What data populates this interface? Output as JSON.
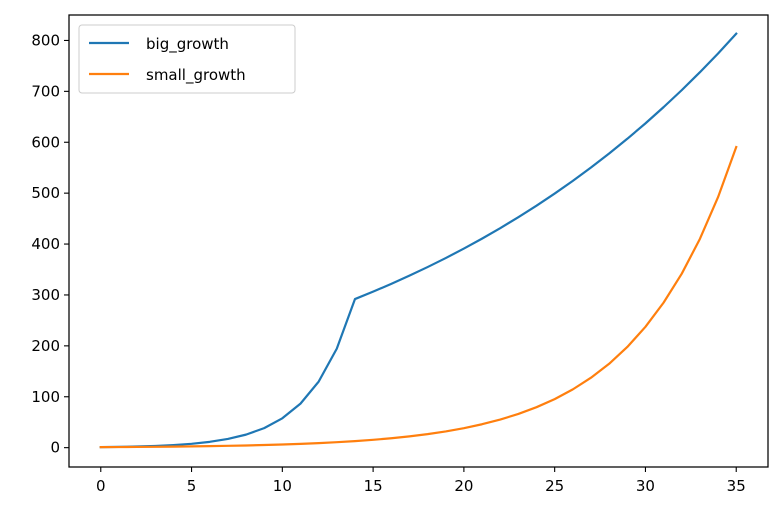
{
  "chart_data": {
    "type": "line",
    "title": "",
    "xlabel": "",
    "ylabel": "",
    "xlim": [
      -1.75,
      36.75
    ],
    "ylim": [
      -38,
      850
    ],
    "xticks": [
      0,
      5,
      10,
      15,
      20,
      25,
      30,
      35
    ],
    "yticks": [
      0,
      100,
      200,
      300,
      400,
      500,
      600,
      700,
      800
    ],
    "grid": false,
    "legend": "upper-left",
    "x": [
      0,
      1,
      2,
      3,
      4,
      5,
      6,
      7,
      8,
      9,
      10,
      11,
      12,
      13,
      14,
      15,
      16,
      17,
      18,
      19,
      20,
      21,
      22,
      23,
      24,
      25,
      26,
      27,
      28,
      29,
      30,
      31,
      32,
      33,
      34,
      35
    ],
    "series": [
      {
        "name": "big_growth",
        "color": "#1f77b4",
        "values": [
          1.0,
          1.5,
          2.3,
          3.4,
          5.1,
          7.6,
          11.4,
          17.1,
          25.6,
          38.4,
          57.7,
          86.5,
          129.7,
          194.6,
          291.9,
          306.5,
          321.8,
          337.9,
          354.8,
          372.5,
          391.1,
          410.7,
          431.2,
          452.8,
          475.4,
          499.2,
          524.2,
          550.4,
          577.9,
          606.8,
          637.1,
          669.0,
          702.4,
          737.6,
          774.4,
          813.2
        ]
      },
      {
        "name": "small_growth",
        "color": "#ff7f0e",
        "values": [
          1.0,
          1.2,
          1.4,
          1.7,
          2.1,
          2.5,
          3.0,
          3.6,
          4.3,
          5.2,
          6.2,
          7.4,
          8.9,
          10.7,
          12.8,
          15.4,
          18.5,
          22.2,
          26.6,
          31.9,
          38.3,
          46.0,
          55.2,
          66.2,
          79.5,
          95.4,
          114.5,
          137.4,
          164.8,
          197.8,
          237.4,
          284.9,
          341.8,
          410.2,
          492.2,
          590.7
        ]
      }
    ]
  }
}
